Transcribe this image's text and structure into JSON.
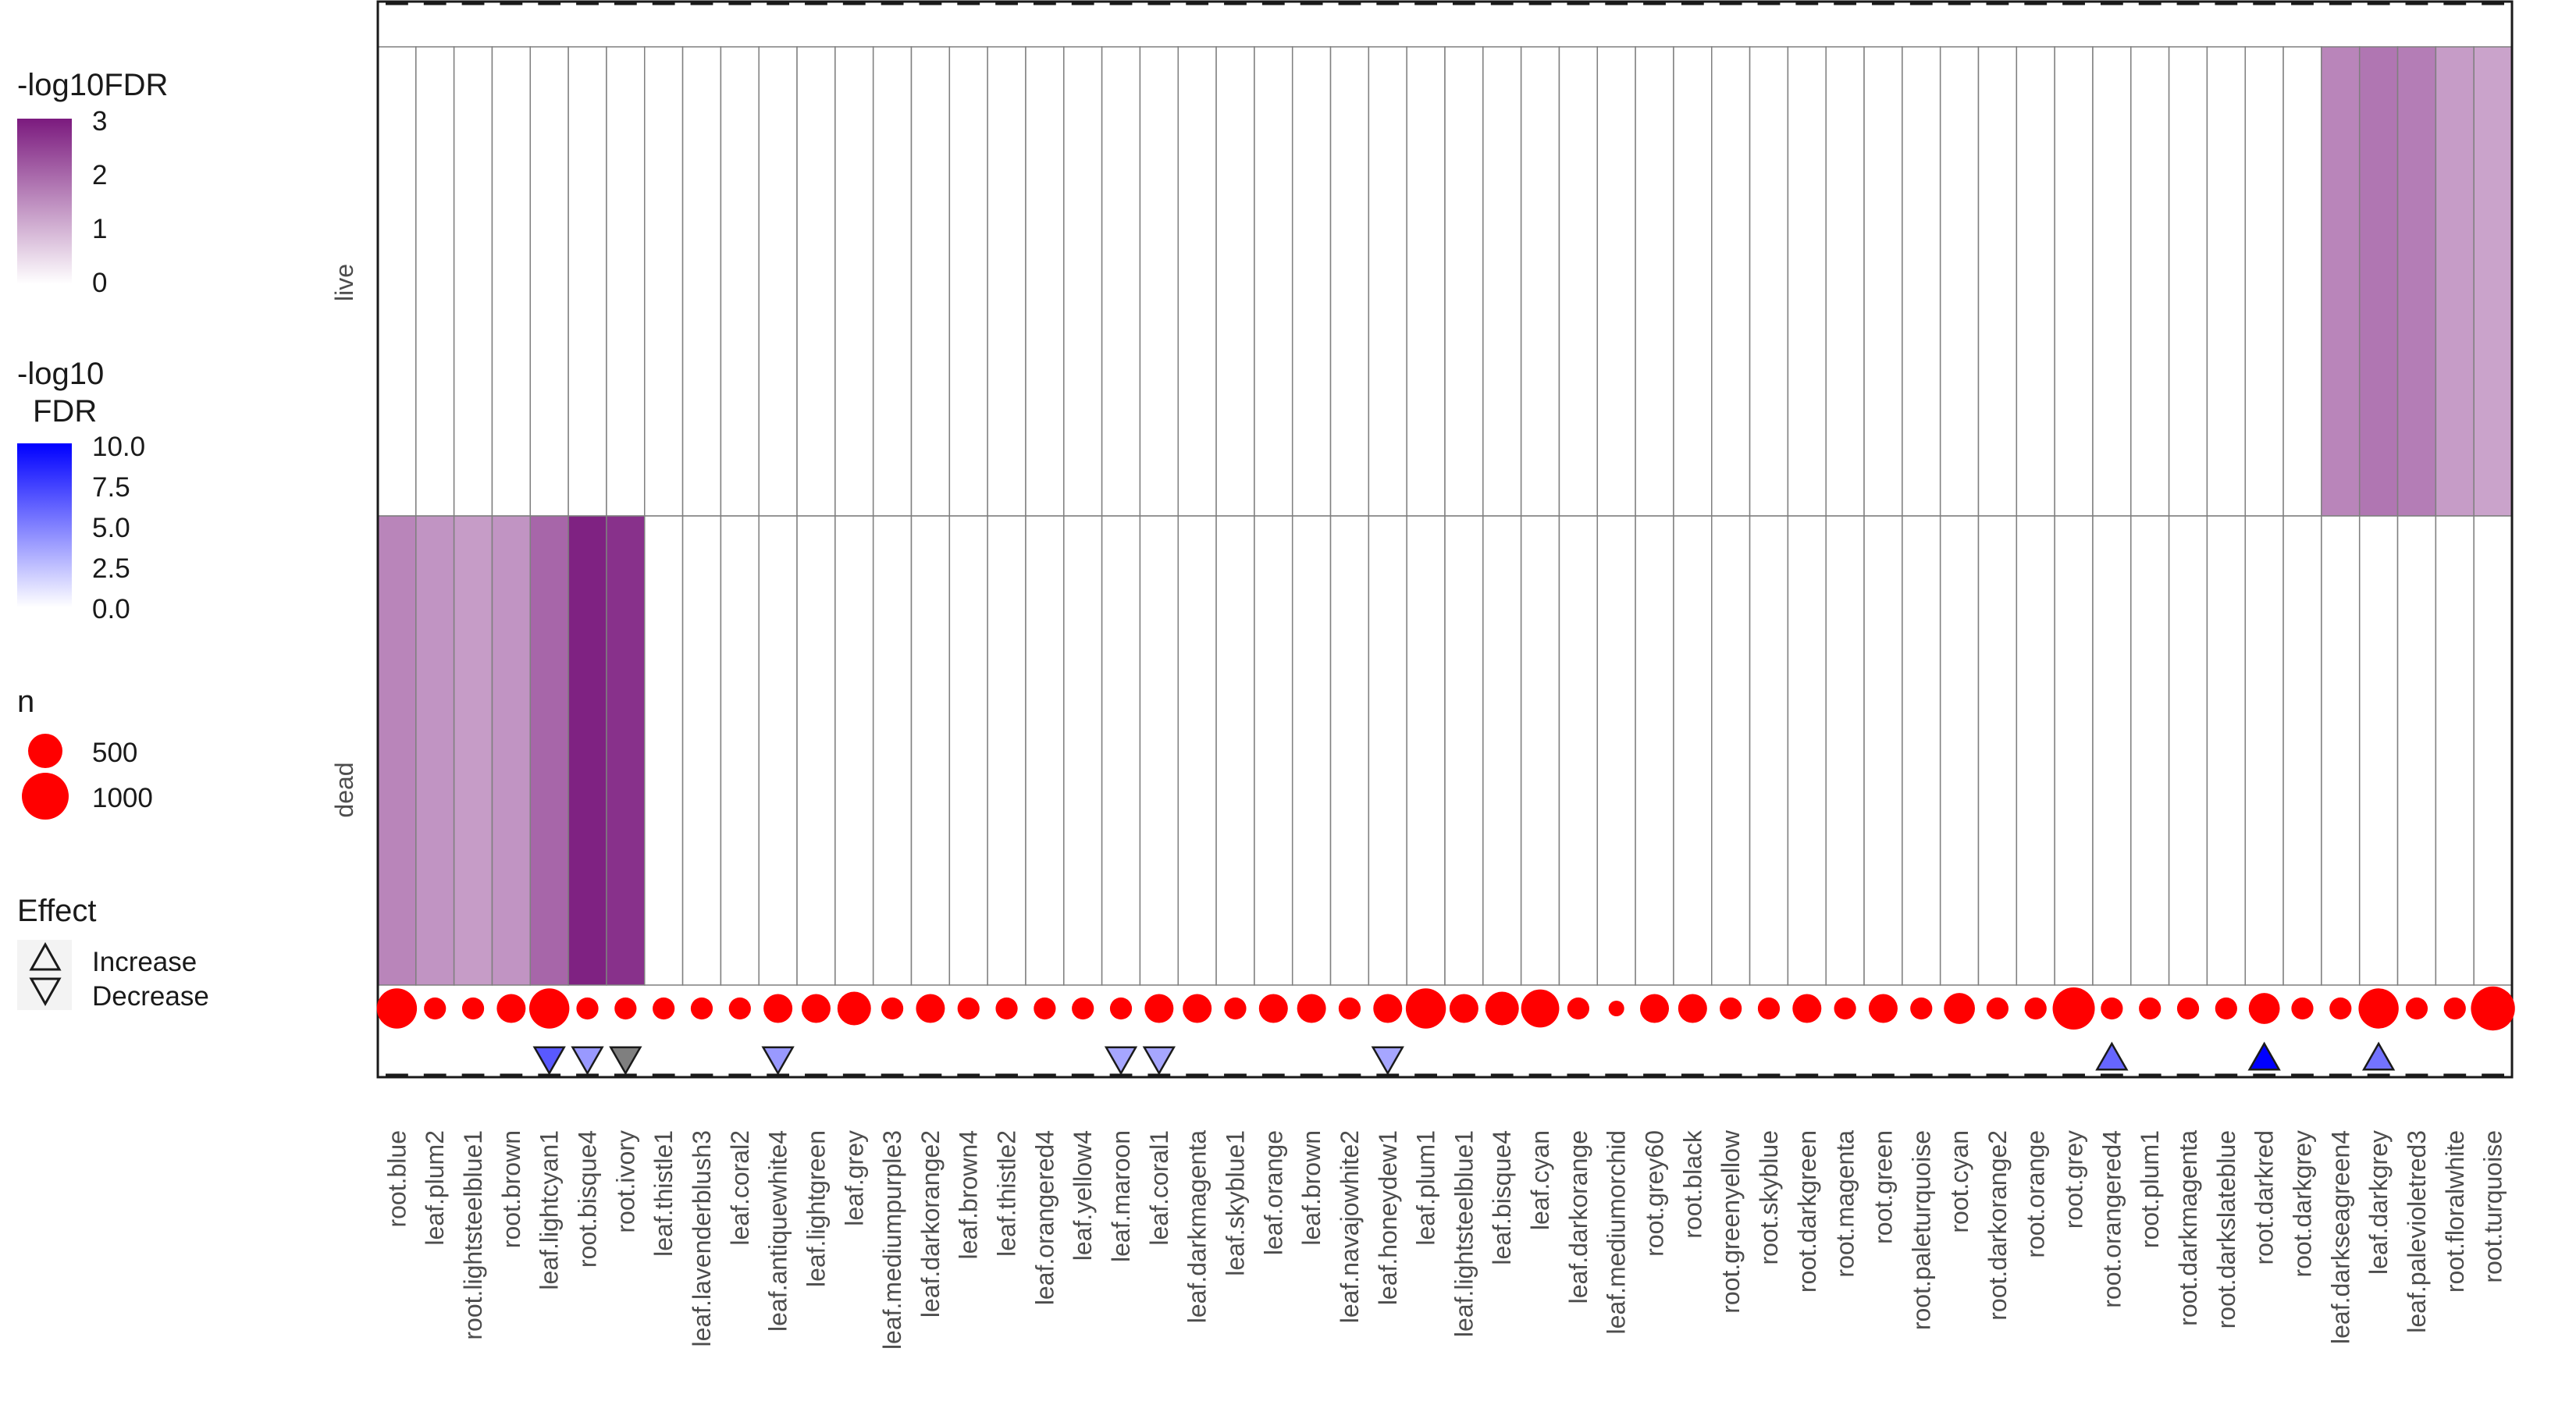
{
  "chart_data": {
    "type": "heatmap",
    "rows": [
      "live",
      "dead"
    ],
    "columns": [
      "root.blue",
      "leaf.plum2",
      "root.lightsteelblue1",
      "root.brown",
      "leaf.lightcyan1",
      "root.bisque4",
      "root.ivory",
      "leaf.thistle1",
      "leaf.lavenderblush3",
      "leaf.coral2",
      "leaf.antiquewhite4",
      "leaf.lightgreen",
      "leaf.grey",
      "leaf.mediumpurple3",
      "leaf.darkorange2",
      "leaf.brown4",
      "leaf.thistle2",
      "leaf.orangered4",
      "leaf.yellow4",
      "leaf.maroon",
      "leaf.coral1",
      "leaf.darkmagenta",
      "leaf.skyblue1",
      "leaf.orange",
      "leaf.brown",
      "leaf.navajowhite2",
      "leaf.honeydew1",
      "leaf.plum1",
      "leaf.lightsteelblue1",
      "leaf.bisque4",
      "leaf.cyan",
      "leaf.darkorange",
      "leaf.mediumorchid",
      "root.grey60",
      "root.black",
      "root.greenyellow",
      "root.skyblue",
      "root.darkgreen",
      "root.magenta",
      "root.green",
      "root.paleturquoise",
      "root.cyan",
      "root.darkorange2",
      "root.orange",
      "root.grey",
      "root.orangered4",
      "root.plum1",
      "root.darkmagenta",
      "root.darkslateblue",
      "root.darkred",
      "root.darkgrey",
      "leaf.darkseagreen4",
      "leaf.darkgrey",
      "leaf.palevioletred3",
      "root.floralwhite",
      "root.turquoise"
    ],
    "heat_values": {
      "live": [
        0,
        0,
        0,
        0,
        0,
        0,
        0,
        0,
        0,
        0,
        0,
        0,
        0,
        0,
        0,
        0,
        0,
        0,
        0,
        0,
        0,
        0,
        0,
        0,
        0,
        0,
        0,
        0,
        0,
        0,
        0,
        0,
        0,
        0,
        0,
        0,
        0,
        0,
        0,
        0,
        0,
        0,
        0,
        0,
        0,
        0,
        0,
        0,
        0,
        0,
        0,
        1.6,
        1.8,
        1.7,
        1.3,
        1.2
      ],
      "dead": [
        1.6,
        1.4,
        1.3,
        1.4,
        2.0,
        2.9,
        2.7,
        0,
        0,
        0,
        0,
        0,
        0,
        0,
        0,
        0,
        0,
        0,
        0,
        0,
        0,
        0,
        0,
        0,
        0,
        0,
        0,
        0,
        0,
        0,
        0,
        0,
        0,
        0,
        0,
        0,
        0,
        0,
        0,
        0,
        0,
        0,
        0,
        0,
        0,
        0,
        0,
        0,
        0,
        0,
        0,
        0,
        0,
        0,
        0,
        0
      ]
    },
    "n_values": [
      1000,
      300,
      300,
      520,
      1000,
      300,
      300,
      300,
      300,
      300,
      520,
      520,
      700,
      300,
      520,
      300,
      300,
      300,
      300,
      300,
      520,
      520,
      300,
      520,
      520,
      300,
      520,
      1000,
      520,
      700,
      900,
      300,
      150,
      520,
      520,
      300,
      300,
      520,
      300,
      520,
      300,
      600,
      300,
      300,
      1100,
      300,
      300,
      300,
      300,
      600,
      300,
      300,
      1000,
      300,
      300,
      1200
    ],
    "effects": [
      {
        "column": "leaf.lightcyan1",
        "direction": "Decrease",
        "neglog10_fdr": 6.5
      },
      {
        "column": "root.bisque4",
        "direction": "Decrease",
        "neglog10_fdr": 4.0
      },
      {
        "column": "root.ivory",
        "direction": "Decrease",
        "neglog10_fdr": 4.0
      },
      {
        "column": "leaf.antiquewhite4",
        "direction": "Decrease",
        "neglog10_fdr": 4.0
      },
      {
        "column": "leaf.maroon",
        "direction": "Decrease",
        "neglog10_fdr": 3.5
      },
      {
        "column": "leaf.coral1",
        "direction": "Decrease",
        "neglog10_fdr": 3.5
      },
      {
        "column": "leaf.honeydew1",
        "direction": "Decrease",
        "neglog10_fdr": 3.5
      },
      {
        "column": "root.orangered4",
        "direction": "Increase",
        "neglog10_fdr": 6.0
      },
      {
        "column": "root.darkred",
        "direction": "Increase",
        "neglog10_fdr": 10.0
      },
      {
        "column": "leaf.darkgrey",
        "direction": "Increase",
        "neglog10_fdr": 5.5
      }
    ],
    "legends": {
      "heat": {
        "title": "-log10FDR",
        "ticks": [
          "3",
          "2",
          "1",
          "0"
        ],
        "range": [
          0,
          3
        ],
        "color_low": "#ffffff",
        "color_high": "#7b1a7e"
      },
      "effect_fdr": {
        "title_line1": "-log10",
        "title_line2": "FDR",
        "ticks": [
          "10.0",
          "7.5",
          "5.0",
          "2.5",
          "0.0"
        ],
        "range": [
          0,
          10
        ],
        "color_low": "#ffffff",
        "color_high": "#0000ff"
      },
      "n": {
        "title": "n",
        "labels": [
          "500",
          "1000"
        ],
        "values": [
          500,
          1000
        ],
        "color": "#ff0000"
      },
      "effect": {
        "title": "Effect",
        "labels": [
          "Increase",
          "Decrease"
        ]
      }
    }
  }
}
